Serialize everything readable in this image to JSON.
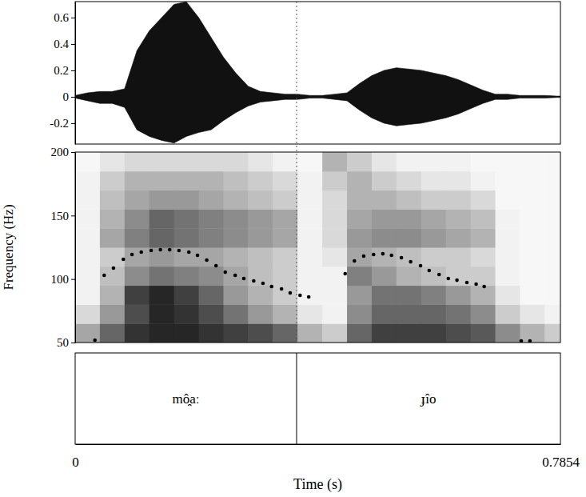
{
  "chart_data": [
    {
      "type": "area",
      "xlim": [
        0,
        0.7854
      ],
      "ylim": [
        -0.358,
        0.721
      ],
      "yticks": [
        0.6,
        0.4,
        0.2,
        0,
        -0.2
      ],
      "x": [
        0,
        0.02,
        0.04,
        0.06,
        0.08,
        0.1,
        0.12,
        0.14,
        0.16,
        0.18,
        0.2,
        0.22,
        0.24,
        0.26,
        0.28,
        0.3,
        0.32,
        0.34,
        0.36,
        0.38,
        0.4,
        0.42,
        0.44,
        0.46,
        0.48,
        0.5,
        0.52,
        0.54,
        0.56,
        0.58,
        0.6,
        0.62,
        0.64,
        0.66,
        0.68,
        0.7,
        0.72,
        0.74,
        0.76,
        0.78,
        0.7854
      ],
      "high": [
        0.01,
        0.03,
        0.04,
        0.04,
        0.06,
        0.35,
        0.5,
        0.6,
        0.7,
        0.72,
        0.6,
        0.45,
        0.3,
        0.18,
        0.08,
        0.04,
        0.03,
        0.02,
        0.02,
        0.01,
        0.01,
        0.02,
        0.03,
        0.1,
        0.16,
        0.2,
        0.22,
        0.21,
        0.2,
        0.18,
        0.16,
        0.13,
        0.09,
        0.05,
        0.02,
        0.02,
        0.01,
        0.01,
        0.01,
        0.005,
        0.005
      ],
      "low": [
        -0.01,
        -0.03,
        -0.05,
        -0.05,
        -0.08,
        -0.25,
        -0.3,
        -0.33,
        -0.35,
        -0.3,
        -0.27,
        -0.25,
        -0.18,
        -0.12,
        -0.07,
        -0.04,
        -0.03,
        -0.02,
        -0.02,
        -0.01,
        -0.01,
        -0.02,
        -0.03,
        -0.1,
        -0.16,
        -0.2,
        -0.22,
        -0.21,
        -0.2,
        -0.18,
        -0.16,
        -0.13,
        -0.09,
        -0.05,
        -0.02,
        -0.02,
        -0.01,
        -0.01,
        -0.01,
        -0.005,
        -0.005
      ],
      "color": "#111111"
    },
    {
      "type": "heatmap",
      "ylabel": "Frequency (Hz)",
      "xlim": [
        0,
        0.7854
      ],
      "ylim": [
        50,
        200
      ],
      "yticks": [
        50,
        100,
        150,
        200
      ],
      "zlim": [
        0,
        1
      ],
      "x_bins": [
        0,
        0.04,
        0.08,
        0.12,
        0.16,
        0.2,
        0.24,
        0.28,
        0.32,
        0.36,
        0.4,
        0.44,
        0.48,
        0.52,
        0.56,
        0.6,
        0.64,
        0.68,
        0.72,
        0.76,
        0.7854
      ],
      "y_bins": [
        50,
        65,
        80,
        95,
        110,
        125,
        140,
        155,
        170,
        185,
        200
      ],
      "cells": [
        [
          0.35,
          0.15,
          0.05,
          0.05,
          0.05,
          0.05,
          0.05,
          0.05,
          0.05,
          0.03
        ],
        [
          0.6,
          0.4,
          0.3,
          0.25,
          0.2,
          0.35,
          0.3,
          0.25,
          0.2,
          0.1
        ],
        [
          0.8,
          0.7,
          0.75,
          0.45,
          0.35,
          0.5,
          0.45,
          0.35,
          0.3,
          0.15
        ],
        [
          0.85,
          0.85,
          0.85,
          0.55,
          0.4,
          0.6,
          0.6,
          0.4,
          0.3,
          0.15
        ],
        [
          0.85,
          0.8,
          0.75,
          0.5,
          0.35,
          0.55,
          0.55,
          0.4,
          0.3,
          0.15
        ],
        [
          0.8,
          0.7,
          0.6,
          0.45,
          0.35,
          0.5,
          0.5,
          0.35,
          0.3,
          0.15
        ],
        [
          0.75,
          0.55,
          0.4,
          0.35,
          0.3,
          0.45,
          0.45,
          0.3,
          0.25,
          0.15
        ],
        [
          0.7,
          0.4,
          0.3,
          0.25,
          0.25,
          0.4,
          0.4,
          0.25,
          0.2,
          0.1
        ],
        [
          0.6,
          0.3,
          0.2,
          0.2,
          0.2,
          0.35,
          0.35,
          0.2,
          0.15,
          0.05
        ],
        [
          0.3,
          0.1,
          0.05,
          0.05,
          0.05,
          0.05,
          0.05,
          0.05,
          0.05,
          0.03
        ],
        [
          0.2,
          0.05,
          0.05,
          0.05,
          0.1,
          0.15,
          0.15,
          0.15,
          0.2,
          0.3
        ],
        [
          0.6,
          0.45,
          0.4,
          0.5,
          0.35,
          0.4,
          0.35,
          0.3,
          0.3,
          0.2
        ],
        [
          0.75,
          0.6,
          0.55,
          0.4,
          0.3,
          0.45,
          0.4,
          0.3,
          0.2,
          0.1
        ],
        [
          0.75,
          0.6,
          0.55,
          0.3,
          0.25,
          0.45,
          0.4,
          0.25,
          0.15,
          0.05
        ],
        [
          0.75,
          0.6,
          0.5,
          0.25,
          0.2,
          0.4,
          0.35,
          0.2,
          0.1,
          0.05
        ],
        [
          0.7,
          0.55,
          0.4,
          0.2,
          0.2,
          0.35,
          0.3,
          0.2,
          0.1,
          0.05
        ],
        [
          0.65,
          0.45,
          0.3,
          0.2,
          0.15,
          0.3,
          0.25,
          0.15,
          0.05,
          0.03
        ],
        [
          0.45,
          0.2,
          0.1,
          0.05,
          0.05,
          0.05,
          0.05,
          0.03,
          0.03,
          0.03
        ],
        [
          0.3,
          0.1,
          0.03,
          0.03,
          0.03,
          0.03,
          0.03,
          0.03,
          0.03,
          0.03
        ],
        [
          0.2,
          0.05,
          0.03,
          0.03,
          0.03,
          0.03,
          0.03,
          0.03,
          0.03,
          0.03
        ]
      ],
      "series": [
        {
          "type": "scatter",
          "marker": "circle",
          "color": "#000000",
          "x": [
            0.032,
            0.047,
            0.062,
            0.078,
            0.092,
            0.107,
            0.123,
            0.138,
            0.153,
            0.168,
            0.184,
            0.198,
            0.213,
            0.228,
            0.243,
            0.259,
            0.273,
            0.289,
            0.304,
            0.318,
            0.334,
            0.348,
            0.364,
            0.378,
            0.437,
            0.452,
            0.467,
            0.483,
            0.498,
            0.512,
            0.528,
            0.543,
            0.559,
            0.573,
            0.589,
            0.604,
            0.618,
            0.634,
            0.649,
            0.662,
            0.722,
            0.736
          ],
          "values": [
            51.9,
            102.9,
            108.6,
            115.5,
            119.3,
            121.2,
            122.5,
            123.1,
            123.1,
            122.5,
            121.2,
            118.7,
            114.9,
            110.5,
            105.4,
            102.9,
            100.4,
            98.5,
            96.6,
            94.1,
            92.2,
            89.1,
            87.2,
            85.9,
            104.2,
            114.3,
            118.1,
            119.3,
            119.9,
            118.7,
            116.8,
            113.6,
            110.5,
            106.7,
            103.6,
            100.4,
            99.1,
            97.3,
            96.0,
            94.1,
            51.3,
            51.3
          ]
        }
      ]
    },
    {
      "type": "textgrid",
      "xlabel": "Time (s)",
      "xlim": [
        0,
        0.7854
      ],
      "xticks": [
        0,
        0.7854
      ],
      "boundaries": [
        0.3584
      ],
      "labels": [
        "mô̯aː",
        "ɟîo"
      ]
    }
  ]
}
